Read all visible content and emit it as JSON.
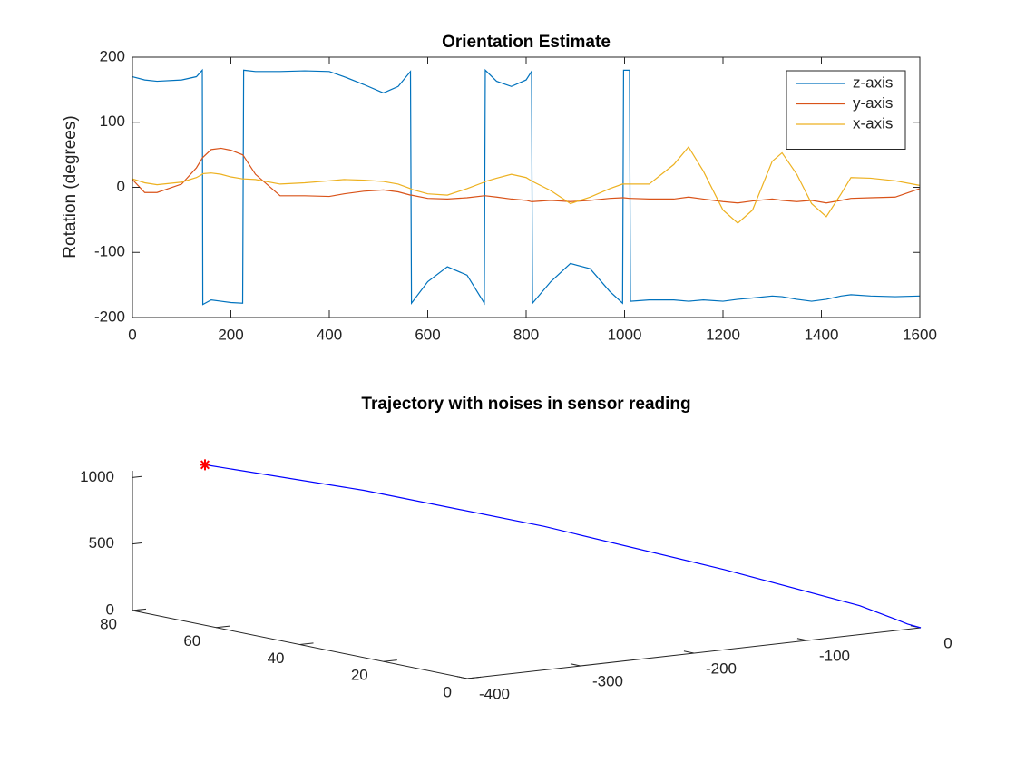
{
  "chart_data": [
    {
      "type": "line",
      "title": "Orientation Estimate",
      "ylabel": "Rotation (degrees)",
      "x": [
        0,
        25,
        50,
        100,
        130,
        142,
        143,
        160,
        180,
        200,
        224,
        226,
        250,
        300,
        350,
        400,
        430,
        470,
        510,
        540,
        565,
        567,
        600,
        640,
        680,
        715,
        717,
        740,
        770,
        800,
        811,
        813,
        850,
        890,
        930,
        970,
        996,
        998,
        1010,
        1012,
        1050,
        1100,
        1130,
        1160,
        1200,
        1230,
        1260,
        1300,
        1320,
        1350,
        1380,
        1410,
        1440,
        1460,
        1500,
        1550,
        1600
      ],
      "series": [
        {
          "name": "z-axis",
          "color": "#0072bd",
          "values": [
            170,
            165,
            163,
            165,
            170,
            180,
            -180,
            -173,
            -175,
            -177,
            -178,
            180,
            178,
            178,
            179,
            178,
            170,
            158,
            145,
            155,
            178,
            -178,
            -145,
            -122,
            -135,
            -178,
            180,
            163,
            155,
            165,
            178,
            -178,
            -145,
            -117,
            -125,
            -160,
            -178,
            180,
            180,
            -175,
            -173,
            -173,
            -175,
            -173,
            -175,
            -172,
            -170,
            -167,
            -168,
            -172,
            -175,
            -172,
            -167,
            -165,
            -167,
            -168,
            -167
          ]
        },
        {
          "name": "y-axis",
          "color": "#d95319",
          "values": [
            12,
            -8,
            -8,
            5,
            30,
            45,
            46,
            58,
            60,
            57,
            50,
            48,
            20,
            -13,
            -13,
            -14,
            -10,
            -6,
            -4,
            -7,
            -12,
            -12,
            -17,
            -18,
            -16,
            -13,
            -13,
            -15,
            -18,
            -20,
            -22,
            -22,
            -20,
            -22,
            -20,
            -17,
            -16,
            -16,
            -17,
            -17,
            -18,
            -18,
            -15,
            -18,
            -22,
            -24,
            -21,
            -18,
            -20,
            -22,
            -20,
            -24,
            -20,
            -17,
            -16,
            -15,
            -2
          ]
        },
        {
          "name": "x-axis",
          "color": "#edb120",
          "values": [
            13,
            7,
            4,
            8,
            15,
            20,
            21,
            22,
            20,
            16,
            13,
            13,
            12,
            5,
            7,
            10,
            12,
            11,
            9,
            5,
            -2,
            -3,
            -10,
            -12,
            -2,
            8,
            9,
            14,
            20,
            15,
            10,
            9,
            -5,
            -25,
            -15,
            -2,
            5,
            5,
            5,
            5,
            5,
            35,
            62,
            25,
            -35,
            -55,
            -35,
            40,
            53,
            20,
            -25,
            -45,
            -10,
            15,
            14,
            10,
            3
          ]
        }
      ],
      "xlim": [
        0,
        1600
      ],
      "xticks": [
        0,
        200,
        400,
        600,
        800,
        1000,
        1200,
        1400,
        1600
      ],
      "ylim": [
        -200,
        200
      ],
      "yticks": [
        -200,
        -100,
        0,
        100,
        200
      ],
      "legend": "upper right",
      "grid": false
    },
    {
      "type": "line3d",
      "title": "Trajectory with noises in sensor reading",
      "x": [
        -336,
        -262,
        -177,
        -92,
        -28,
        -11,
        -6,
        0
      ],
      "y": [
        80,
        62,
        42,
        22,
        7,
        3,
        1.5,
        0
      ],
      "z": [
        1034,
        886,
        662,
        384,
        148,
        55,
        24,
        0
      ],
      "color": "#0000ff",
      "marker": "*",
      "marker_color": "#ff0000",
      "xlim": [
        -400,
        0
      ],
      "xticks": [
        -400,
        -300,
        -200,
        -100,
        0
      ],
      "ylim": [
        0,
        80
      ],
      "yticks": [
        0,
        20,
        40,
        60,
        80
      ],
      "zlim": [
        0,
        1050
      ],
      "zticks": [
        0,
        500,
        1000
      ]
    }
  ]
}
